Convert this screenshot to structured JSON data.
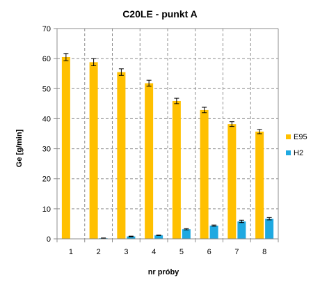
{
  "chart_data": {
    "type": "bar",
    "title": "C20LE - punkt A",
    "xlabel": "nr próby",
    "ylabel": "Ge [g/min]",
    "categories": [
      "1",
      "2",
      "3",
      "4",
      "5",
      "6",
      "7",
      "8"
    ],
    "ylim": [
      0,
      70
    ],
    "yticks": [
      0,
      10,
      20,
      30,
      40,
      50,
      60,
      70
    ],
    "grid": true,
    "legend_position": "right",
    "series": [
      {
        "name": "E95",
        "color": "#FFC000",
        "values": [
          60.5,
          58.8,
          55.5,
          51.8,
          45.9,
          42.9,
          38.2,
          35.7
        ],
        "errors": [
          1.2,
          1.2,
          1.1,
          1.0,
          0.9,
          0.9,
          0.8,
          0.7
        ]
      },
      {
        "name": "H2",
        "color": "#1FA9E1",
        "values": [
          0,
          0.2,
          0.8,
          1.2,
          3.2,
          4.4,
          5.8,
          6.7
        ],
        "errors": [
          0,
          0.1,
          0.1,
          0.1,
          0.2,
          0.2,
          0.4,
          0.4
        ]
      }
    ]
  }
}
